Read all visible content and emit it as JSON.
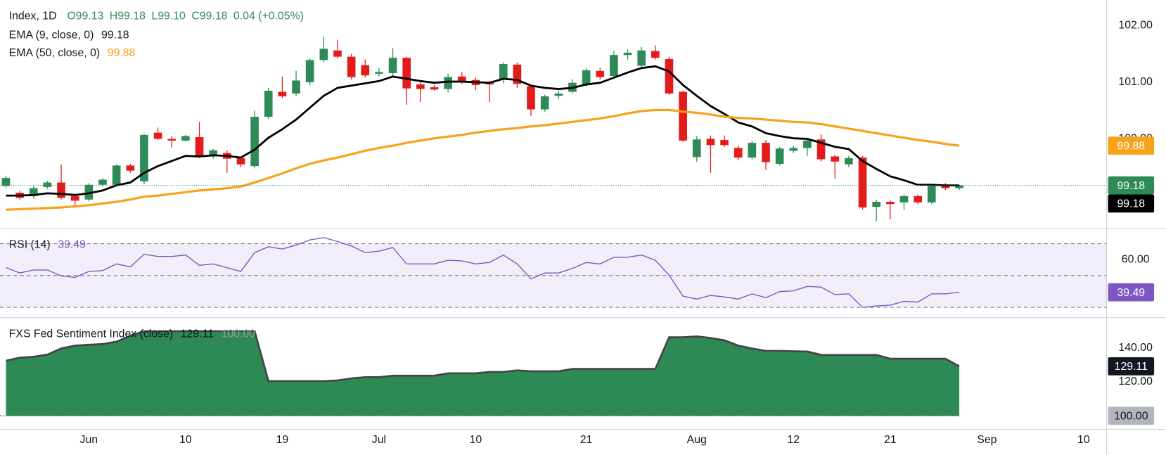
{
  "chart_data": [
    {
      "type": "candlestick",
      "legend": {
        "symbol": "Index, 1D",
        "open": "O99.13",
        "high": "H99.18",
        "low": "L99.10",
        "close": "C99.18",
        "change": "0.04 (+0.05%)"
      },
      "categories": [
        null,
        null,
        null,
        null,
        null,
        null,
        "Jun",
        null,
        null,
        null,
        null,
        null,
        null,
        "10",
        null,
        null,
        null,
        null,
        null,
        null,
        "19",
        null,
        null,
        null,
        null,
        null,
        null,
        "Jul",
        null,
        null,
        null,
        null,
        null,
        null,
        "10",
        null,
        null,
        null,
        null,
        null,
        null,
        null,
        "21",
        null,
        null,
        null,
        null,
        null,
        null,
        null,
        "Aug",
        null,
        null,
        null,
        null,
        null,
        null,
        "12",
        null,
        null,
        null,
        null,
        null,
        null,
        "21",
        null,
        null,
        null,
        null,
        null,
        null,
        "Sep",
        null,
        null,
        null,
        null,
        null,
        null,
        "10"
      ],
      "open": [
        99.17,
        99.05,
        98.99,
        99.15,
        99.23,
        98.99,
        98.93,
        99.19,
        99.19,
        99.53,
        99.25,
        100.11,
        100.0,
        99.97,
        100.03,
        99.69,
        99.75,
        99.66,
        99.52,
        100.39,
        100.83,
        100.8,
        101.0,
        101.39,
        101.56,
        101.45,
        101.3,
        101.15,
        101.16,
        101.43,
        100.96,
        100.91,
        100.88,
        101.1,
        101.04,
        100.99,
        101.05,
        101.31,
        100.93,
        100.52,
        100.76,
        100.83,
        100.95,
        101.2,
        101.11,
        101.48,
        101.29,
        101.55,
        101.41,
        100.83,
        99.68,
        100.0,
        99.98,
        99.84,
        99.67,
        99.93,
        99.56,
        99.79,
        99.84,
        99.99,
        99.69,
        99.55,
        99.67,
        98.8,
        98.89,
        98.88,
        98.99,
        98.88,
        99.17,
        99.13,
        null,
        null,
        null,
        null,
        null,
        null,
        null,
        null,
        null
      ],
      "high": [
        99.35,
        99.08,
        99.16,
        99.26,
        99.55,
        99.02,
        99.22,
        99.31,
        99.55,
        99.56,
        100.09,
        100.2,
        100.05,
        100.07,
        100.3,
        99.82,
        99.8,
        99.68,
        100.5,
        100.9,
        101.1,
        101.2,
        101.42,
        101.8,
        101.75,
        101.5,
        101.4,
        101.25,
        101.6,
        101.45,
        101.0,
        100.95,
        101.15,
        101.18,
        101.08,
        101.02,
        101.35,
        101.35,
        100.95,
        100.78,
        100.85,
        101.05,
        101.25,
        101.25,
        101.55,
        101.58,
        101.62,
        101.65,
        101.45,
        100.85,
        100.05,
        100.06,
        100.06,
        99.88,
        99.96,
        99.98,
        99.86,
        99.88,
        100.02,
        100.08,
        99.72,
        99.7,
        99.7,
        98.92,
        98.92,
        99.02,
        99.02,
        99.2,
        99.22,
        99.18,
        null,
        null,
        null,
        null,
        null,
        null,
        null,
        null,
        null
      ],
      "low": [
        99.14,
        98.93,
        98.95,
        99.12,
        98.93,
        98.8,
        98.9,
        99.16,
        99.16,
        99.4,
        99.2,
        99.98,
        99.85,
        99.95,
        99.66,
        99.65,
        99.4,
        99.5,
        99.48,
        100.35,
        100.72,
        100.75,
        100.95,
        101.35,
        101.42,
        101.05,
        101.08,
        101.1,
        101.1,
        100.6,
        100.65,
        100.85,
        100.82,
        100.97,
        100.86,
        100.65,
        100.98,
        100.9,
        100.4,
        100.48,
        100.7,
        100.8,
        100.92,
        101.05,
        101.08,
        101.4,
        101.25,
        101.4,
        100.78,
        99.95,
        99.6,
        99.4,
        99.86,
        99.62,
        99.64,
        99.45,
        99.53,
        99.75,
        99.7,
        99.6,
        99.3,
        99.5,
        98.75,
        98.55,
        98.58,
        98.75,
        98.85,
        98.85,
        99.1,
        99.1,
        null,
        null,
        null,
        null,
        null,
        null,
        null,
        null,
        null
      ],
      "close": [
        99.31,
        98.96,
        99.13,
        99.23,
        98.96,
        98.91,
        99.19,
        99.28,
        99.53,
        99.44,
        100.07,
        100.0,
        99.97,
        100.05,
        99.68,
        99.8,
        99.65,
        99.55,
        100.39,
        100.85,
        100.75,
        101.03,
        101.39,
        101.59,
        101.45,
        101.09,
        101.12,
        101.18,
        101.43,
        100.89,
        100.88,
        100.87,
        101.09,
        101.01,
        100.95,
        100.96,
        101.32,
        100.97,
        100.52,
        100.75,
        100.8,
        100.99,
        101.21,
        101.09,
        101.48,
        101.52,
        101.56,
        101.43,
        100.8,
        99.97,
        99.99,
        99.89,
        99.89,
        99.67,
        99.93,
        99.59,
        99.83,
        99.84,
        99.97,
        99.64,
        99.6,
        99.66,
        98.79,
        98.89,
        98.85,
        98.99,
        98.88,
        99.17,
        99.13,
        99.18,
        null,
        null,
        null,
        null,
        null,
        null,
        null,
        null,
        null
      ],
      "last_close_label": "99.18",
      "up_color": "#2e8b57",
      "down_color": "#e31b1b",
      "last_price_line": true,
      "series": [
        {
          "name": "EMA (9, close, 0)",
          "last_label": "99.18",
          "color": "#000000",
          "values": [
            99.0,
            99.0,
            99.01,
            99.04,
            99.03,
            99.01,
            99.04,
            99.09,
            99.18,
            99.23,
            99.4,
            99.52,
            99.61,
            99.7,
            99.69,
            99.71,
            99.7,
            99.67,
            99.81,
            100.02,
            100.17,
            100.34,
            100.55,
            100.76,
            100.9,
            100.94,
            100.98,
            101.02,
            101.1,
            101.06,
            101.02,
            100.99,
            101.01,
            101.01,
            101.0,
            100.99,
            101.06,
            101.04,
            100.94,
            100.9,
            100.88,
            100.9,
            100.96,
            100.99,
            101.08,
            101.17,
            101.25,
            101.28,
            101.19,
            100.95,
            100.76,
            100.58,
            100.44,
            100.29,
            100.22,
            100.1,
            100.05,
            100.01,
            100.0,
            99.93,
            99.86,
            99.82,
            99.61,
            99.47,
            99.34,
            99.27,
            99.19,
            99.19,
            99.18,
            99.18,
            null,
            null,
            null,
            null,
            null,
            null,
            null,
            null,
            null
          ]
        },
        {
          "name": "EMA (50, close, 0)",
          "last_label": "99.88",
          "color": "#f7a21b",
          "values": [
            98.75,
            98.76,
            98.77,
            98.78,
            98.79,
            98.81,
            98.83,
            98.86,
            98.89,
            98.93,
            98.98,
            99.0,
            99.03,
            99.06,
            99.09,
            99.11,
            99.13,
            99.16,
            99.23,
            99.31,
            99.39,
            99.48,
            99.56,
            99.62,
            99.67,
            99.73,
            99.79,
            99.84,
            99.88,
            99.93,
            99.97,
            100.01,
            100.04,
            100.07,
            100.11,
            100.14,
            100.17,
            100.19,
            100.22,
            100.24,
            100.27,
            100.3,
            100.33,
            100.36,
            100.4,
            100.45,
            100.49,
            100.51,
            100.51,
            100.48,
            100.46,
            100.43,
            100.39,
            100.37,
            100.36,
            100.34,
            100.32,
            100.3,
            100.29,
            100.26,
            100.22,
            100.18,
            100.14,
            100.1,
            100.06,
            100.02,
            99.98,
            99.95,
            99.91,
            99.88,
            null,
            null,
            null,
            null,
            null,
            null,
            null,
            null,
            null
          ]
        }
      ],
      "ylim": [
        98.43,
        102.45
      ],
      "yticks": [
        {
          "value": 102,
          "label": "102.00"
        },
        {
          "value": 101,
          "label": "101.00"
        },
        {
          "value": 100,
          "label": "100.00"
        }
      ],
      "grid": false
    },
    {
      "type": "line",
      "series": [
        {
          "name": "RSI (14)",
          "last_label": "39.49",
          "color": "#7e57c2",
          "values": [
            55.0,
            51.6,
            53.5,
            53.5,
            49.8,
            48.8,
            52.6,
            53.1,
            57.3,
            55.4,
            63.4,
            62.0,
            62.0,
            62.9,
            56.4,
            57.3,
            54.9,
            52.6,
            64.4,
            68.1,
            66.7,
            69.1,
            72.4,
            73.8,
            71.4,
            68.6,
            64.4,
            65.3,
            67.6,
            57.3,
            57.3,
            57.3,
            59.6,
            59.2,
            57.3,
            58.2,
            62.9,
            57.3,
            47.9,
            51.6,
            51.6,
            54.5,
            58.2,
            57.3,
            61.5,
            61.5,
            62.9,
            59.6,
            50.2,
            37.1,
            35.2,
            37.5,
            36.6,
            35.2,
            38.5,
            36.1,
            39.9,
            40.4,
            43.2,
            42.7,
            38.0,
            38.5,
            30.0,
            30.9,
            31.4,
            33.8,
            33.3,
            38.5,
            38.5,
            39.49,
            null,
            null,
            null,
            null,
            null,
            null,
            null,
            null,
            null
          ]
        }
      ],
      "levels": [
        70,
        50,
        30
      ],
      "band_color": "rgba(126,87,194,0.1)",
      "ylim": [
        24,
        79
      ],
      "yticks": [
        {
          "value": 60,
          "label": "60.00"
        }
      ],
      "grid": false
    },
    {
      "type": "area",
      "title": "FXS Fed Sentiment Index (close)",
      "last_label": "129.11",
      "baseline": {
        "value": 100,
        "label": "100.00"
      },
      "values": [
        132.4,
        134.2,
        134.7,
        136.0,
        139.6,
        141.3,
        141.8,
        142.2,
        143.6,
        147.1,
        149.8,
        149.8,
        149.8,
        149.8,
        149.8,
        149.8,
        149.8,
        149.8,
        149.8,
        120.4,
        120.4,
        120.4,
        120.4,
        120.4,
        120.8,
        122.0,
        122.7,
        122.7,
        123.6,
        123.6,
        123.6,
        123.6,
        125.0,
        125.0,
        125.0,
        125.8,
        125.8,
        126.7,
        126.2,
        126.2,
        126.2,
        127.6,
        127.6,
        127.6,
        127.6,
        127.6,
        127.6,
        127.6,
        146.2,
        146.2,
        146.7,
        145.8,
        144.4,
        141.3,
        139.6,
        138.2,
        138.2,
        138.0,
        137.8,
        135.8,
        135.8,
        135.8,
        135.8,
        135.8,
        133.6,
        133.6,
        133.6,
        133.6,
        133.6,
        129.11,
        null,
        null,
        null,
        null,
        null,
        null,
        null,
        null,
        null
      ],
      "color": "#2e8a55",
      "line_color": "#444444",
      "label_color": "#131722",
      "baseline_color": "#b2b5be",
      "ylim": [
        92,
        157.3
      ],
      "yticks": [
        {
          "value": 140,
          "label": "140.00"
        },
        {
          "value": 120,
          "label": "120.00"
        }
      ],
      "grid": false
    }
  ]
}
